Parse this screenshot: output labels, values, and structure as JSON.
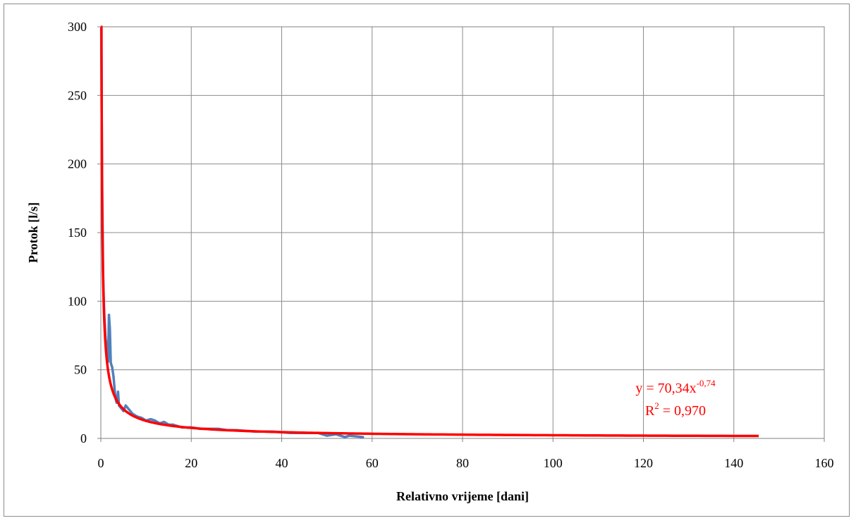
{
  "chart_data": {
    "type": "scatter",
    "xlabel": "Relativno vrijeme [dani]",
    "ylabel": "Protok [l/s]",
    "xlim": [
      0,
      160
    ],
    "ylim": [
      0,
      300
    ],
    "x_ticks": [
      0,
      20,
      40,
      60,
      80,
      100,
      120,
      140,
      160
    ],
    "y_ticks": [
      0,
      50,
      100,
      150,
      200,
      250,
      300
    ],
    "grid": true,
    "series": [
      {
        "color": "#4f81bd",
        "points": [
          [
            0.1,
            299
          ],
          [
            0.2,
            230
          ],
          [
            0.3,
            180
          ],
          [
            0.4,
            150
          ],
          [
            0.5,
            120
          ],
          [
            0.6,
            108
          ],
          [
            0.7,
            96
          ],
          [
            0.8,
            88
          ],
          [
            0.9,
            82
          ],
          [
            1.0,
            75
          ],
          [
            1.2,
            68
          ],
          [
            1.4,
            60
          ],
          [
            1.6,
            56
          ],
          [
            1.8,
            90
          ],
          [
            2.0,
            80
          ],
          [
            2.2,
            55
          ],
          [
            2.5,
            52
          ],
          [
            2.8,
            45
          ],
          [
            3.0,
            38
          ],
          [
            3.2,
            30
          ],
          [
            3.5,
            26
          ],
          [
            3.8,
            34
          ],
          [
            4.0,
            24
          ],
          [
            4.5,
            22
          ],
          [
            5.0,
            20
          ],
          [
            5.5,
            24
          ],
          [
            6.0,
            22
          ],
          [
            7.0,
            18
          ],
          [
            8.0,
            16
          ],
          [
            9.0,
            15
          ],
          [
            10.0,
            13
          ],
          [
            11.0,
            14
          ],
          [
            12.0,
            13
          ],
          [
            13.0,
            11
          ],
          [
            14.0,
            12
          ],
          [
            15.0,
            10
          ],
          [
            16.0,
            10
          ],
          [
            17.0,
            9
          ],
          [
            18.0,
            8
          ],
          [
            20.0,
            8
          ],
          [
            22.0,
            7
          ],
          [
            24.0,
            7
          ],
          [
            26.0,
            7
          ],
          [
            28.0,
            6
          ],
          [
            30.0,
            6
          ],
          [
            34.0,
            5
          ],
          [
            38.0,
            5
          ],
          [
            42.0,
            4
          ],
          [
            46.0,
            4
          ],
          [
            48.0,
            4
          ],
          [
            50.0,
            2
          ],
          [
            52.0,
            3
          ],
          [
            54.0,
            1
          ],
          [
            55.0,
            2
          ],
          [
            58.0,
            1
          ]
        ]
      },
      {
        "color": "#ff0000",
        "trendline": "power",
        "coefficient": 70.34,
        "exponent": -0.74,
        "x_range": [
          0.035,
          145.5
        ]
      }
    ],
    "annotations": [
      {
        "text_base": "y = 70,34x",
        "text_sup": "-0,74"
      },
      {
        "text_base": "R",
        "text_sup": "2",
        "text_rest": " = 0,970"
      }
    ]
  }
}
